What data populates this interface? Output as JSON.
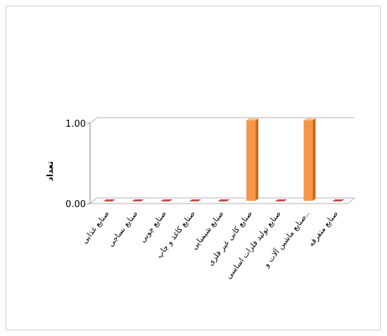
{
  "chart_data": {
    "type": "bar",
    "categories": [
      "صنایع غذایی",
      "صنایع نساجی",
      "صنایع چوبی",
      "صنایع کاغذ و چاپ",
      "صنایع شیمیایی",
      "صنایع کانی غیر فلزی",
      "صنایع تولید فلزات اساسی",
      "صنایع ماشین آلات و..",
      "صنایع متفرقه"
    ],
    "values": [
      0,
      0,
      0,
      0,
      0,
      1,
      0,
      1,
      0
    ],
    "ylabel": "تعداد",
    "ylim": [
      0,
      1
    ],
    "yticks": [
      "0.00",
      "1.00"
    ],
    "grid": true,
    "legend": "none",
    "colors": {
      "bar_front": "#f79646",
      "bar_side": "#c46a18",
      "bar_top": "#fbbf86",
      "zero_bar": "#c0504d",
      "grid": "#b0b0b0"
    }
  }
}
